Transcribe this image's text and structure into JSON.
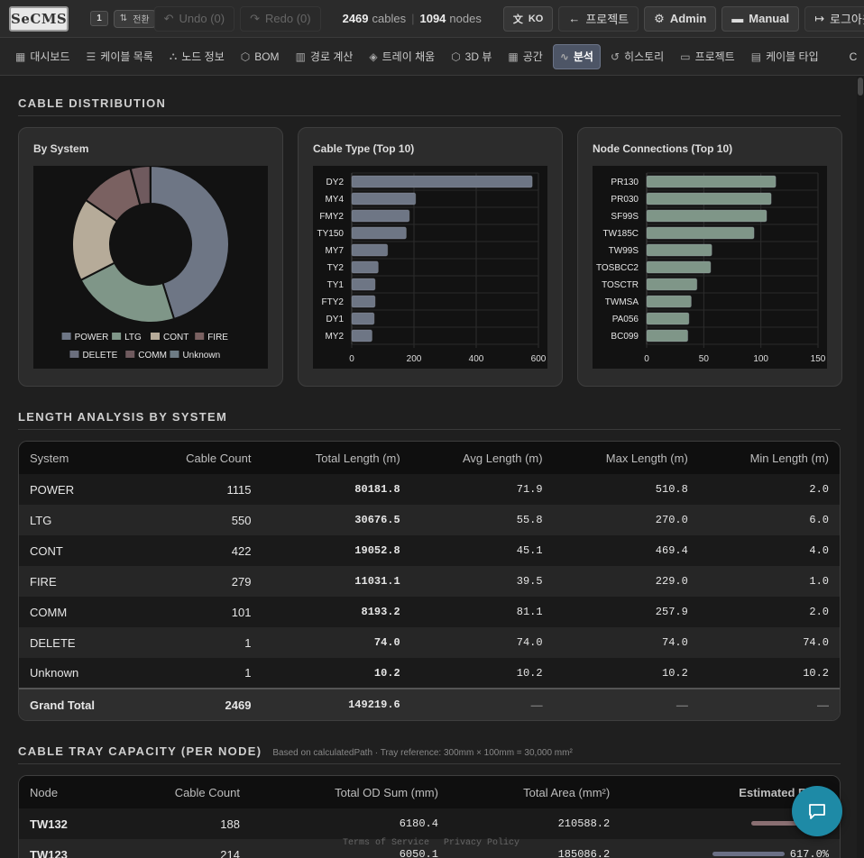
{
  "app": {
    "logo_text": "SeCMS"
  },
  "topbar": {
    "page_badge": "1",
    "switch_label": "전환",
    "undo_label": "Undo (0)",
    "redo_label": "Redo (0)",
    "cable_count": "2469",
    "cables_label": "cables",
    "node_count": "1094",
    "nodes_label": "nodes",
    "lang_label": "KO",
    "project_label": "프로젝트",
    "admin_label": "Admin",
    "manual_label": "Manual",
    "logout_label": "로그아웃"
  },
  "nav": {
    "items": [
      {
        "label": "대시보드",
        "icon": "grid-icon"
      },
      {
        "label": "케이블 목록",
        "icon": "list-icon"
      },
      {
        "label": "노드 정보",
        "icon": "nodes-icon"
      },
      {
        "label": "BOM",
        "icon": "box-icon"
      },
      {
        "label": "경로 계산",
        "icon": "map-icon"
      },
      {
        "label": "트레이 채움",
        "icon": "layers-icon"
      },
      {
        "label": "3D 뷰",
        "icon": "cube-icon"
      },
      {
        "label": "공간",
        "icon": "grid-icon"
      },
      {
        "label": "분석",
        "icon": "activity-icon"
      },
      {
        "label": "히스토리",
        "icon": "history-icon"
      },
      {
        "label": "프로젝트",
        "icon": "folder-icon"
      },
      {
        "label": "케이블 타입",
        "icon": "table-icon"
      },
      {
        "label": "C",
        "icon": ""
      }
    ],
    "active_index": 8
  },
  "distribution": {
    "title": "CABLE DISTRIBUTION",
    "by_system_title": "By System",
    "cable_type_title": "Cable Type (Top 10)",
    "node_conn_title": "Node Connections (Top 10)"
  },
  "chart_data": [
    {
      "type": "pie",
      "title": "By System",
      "categories": [
        "POWER",
        "LTG",
        "CONT",
        "FIRE",
        "DELETE",
        "COMM",
        "Unknown"
      ],
      "values": [
        1115,
        550,
        422,
        279,
        1,
        101,
        1
      ],
      "colors": [
        "#6e7685",
        "#7f9688",
        "#b6ab99",
        "#7a6161",
        "#6b6f7e",
        "#6f5a5e",
        "#6e7c85"
      ],
      "legend_position": "bottom"
    },
    {
      "type": "bar",
      "orientation": "horizontal",
      "title": "Cable Type (Top 10)",
      "categories": [
        "DY2",
        "MY4",
        "FMY2",
        "TY150",
        "MY7",
        "TY2",
        "TY1",
        "FTY2",
        "DY1",
        "MY2"
      ],
      "values": [
        580,
        205,
        185,
        175,
        115,
        85,
        75,
        75,
        72,
        65
      ],
      "xlim": [
        0,
        600
      ],
      "xticks": [
        0,
        200,
        400,
        600
      ],
      "color": "#6e7685",
      "grid": true
    },
    {
      "type": "bar",
      "orientation": "horizontal",
      "title": "Node Connections (Top 10)",
      "categories": [
        "PR130",
        "PR030",
        "SF99S",
        "TW185C",
        "TW99S",
        "TOSBCC2",
        "TOSCTR",
        "TWMSA",
        "PA056",
        "BC099"
      ],
      "values": [
        113,
        109,
        105,
        94,
        57,
        56,
        44,
        39,
        37,
        36
      ],
      "xlim": [
        0,
        150
      ],
      "xticks": [
        0,
        50,
        100,
        150
      ],
      "color": "#7f9688",
      "grid": true
    }
  ],
  "length_analysis": {
    "title": "LENGTH ANALYSIS BY SYSTEM",
    "headers": [
      "System",
      "Cable Count",
      "Total Length (m)",
      "Avg Length (m)",
      "Max Length (m)",
      "Min Length (m)"
    ],
    "rows": [
      [
        "POWER",
        "1115",
        "80181.8",
        "71.9",
        "510.8",
        "2.0"
      ],
      [
        "LTG",
        "550",
        "30676.5",
        "55.8",
        "270.0",
        "6.0"
      ],
      [
        "CONT",
        "422",
        "19052.8",
        "45.1",
        "469.4",
        "4.0"
      ],
      [
        "FIRE",
        "279",
        "11031.1",
        "39.5",
        "229.0",
        "1.0"
      ],
      [
        "COMM",
        "101",
        "8193.2",
        "81.1",
        "257.9",
        "2.0"
      ],
      [
        "DELETE",
        "1",
        "74.0",
        "74.0",
        "74.0",
        "74.0"
      ],
      [
        "Unknown",
        "1",
        "10.2",
        "10.2",
        "10.2",
        "10.2"
      ]
    ],
    "total": [
      "Grand Total",
      "2469",
      "149219.6",
      "—",
      "—",
      "—"
    ]
  },
  "tray_capacity": {
    "title": "CABLE TRAY CAPACITY (PER NODE)",
    "note": "Based on calculatedPath · Tray reference: 300mm × 100mm = 30,000 mm²",
    "headers": [
      "Node",
      "Cable Count",
      "Total OD Sum (mm)",
      "Total Area (mm²)",
      "Estimated Fill %"
    ],
    "rows": [
      {
        "node": "TW132",
        "count": "188",
        "od": "6180.4",
        "area": "210588.2",
        "fill": "",
        "bar_color": "#8a6f72"
      },
      {
        "node": "TW123",
        "count": "214",
        "od": "6050.1",
        "area": "185086.2",
        "fill": "617.0%",
        "bar_color": "#6b6f85"
      }
    ]
  },
  "footer": {
    "terms": "Terms of Service",
    "privacy": "Privacy Policy"
  }
}
